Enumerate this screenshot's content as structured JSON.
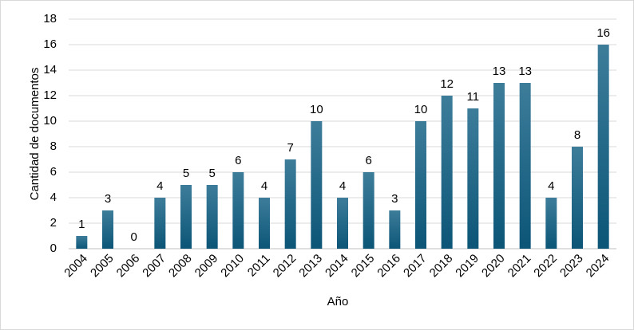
{
  "chart_data": {
    "type": "bar",
    "title": "",
    "xlabel": "Año",
    "ylabel": "Cantidad de documentos",
    "ylim": [
      0,
      18
    ],
    "yticks": [
      0,
      2,
      4,
      6,
      8,
      10,
      12,
      14,
      16,
      18
    ],
    "grid": true,
    "legend": "none",
    "categories": [
      "2004",
      "2005",
      "2006",
      "2007",
      "2008",
      "2009",
      "2010",
      "2011",
      "2012",
      "2013",
      "2014",
      "2015",
      "2016",
      "2017",
      "2018",
      "2019",
      "2020",
      "2021",
      "2022",
      "2023",
      "2024"
    ],
    "values": [
      1,
      3,
      0,
      4,
      5,
      5,
      6,
      4,
      7,
      10,
      4,
      6,
      3,
      10,
      12,
      11,
      13,
      13,
      4,
      8,
      16
    ],
    "colors": {
      "bar_top": "#3d7d9a",
      "bar_bottom": "#0c5577"
    }
  }
}
